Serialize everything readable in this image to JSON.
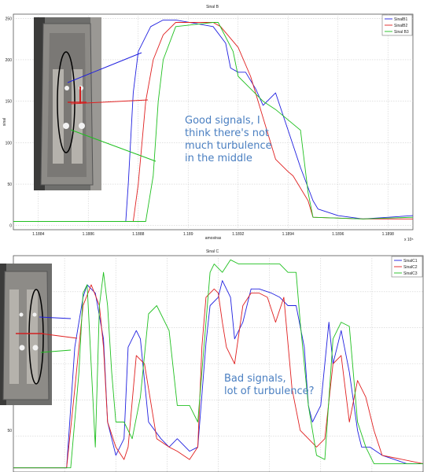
{
  "colors": {
    "series1": "#2020e0",
    "series2": "#e02020",
    "series3": "#20c020",
    "note": "#4a7fc1"
  },
  "chart_data": [
    {
      "type": "line",
      "title": "Sinal B",
      "xlabel": "amostras",
      "ylabel": "sinal",
      "x_exponent": "x 10⁵",
      "xlim": [
        1.1883,
        1.1899
      ],
      "ylim": [
        -5,
        255
      ],
      "x_ticks": [
        1.1884,
        1.1886,
        1.1888,
        1.189,
        1.1892,
        1.1894,
        1.1896,
        1.1898
      ],
      "x_tick_labels": [
        "1.1884",
        "1.1886",
        "1.1888",
        "1.189",
        "1.1892",
        "1.1894",
        "1.1896",
        "1.1898"
      ],
      "y_ticks": [
        0,
        50,
        100,
        150,
        200,
        250
      ],
      "y_tick_labels": [
        "0",
        "50",
        "100",
        "150",
        "200",
        "250"
      ],
      "grid": true,
      "legend_position": "top-right",
      "annotation": [
        "Good signals, I",
        "think there's not",
        "much turbulence",
        "in the middle"
      ],
      "series": [
        {
          "name": "SinalB1",
          "x": [
            1.1883,
            1.18875,
            1.18876,
            1.18878,
            1.1888,
            1.18885,
            1.1889,
            1.18895,
            1.1891,
            1.18915,
            1.18917,
            1.1892,
            1.18923,
            1.18927,
            1.1893,
            1.18935,
            1.1894,
            1.18945,
            1.1895,
            1.18952,
            1.1896,
            1.1897,
            1.1899
          ],
          "y": [
            5,
            5,
            50,
            160,
            210,
            240,
            248,
            248,
            240,
            220,
            190,
            185,
            185,
            165,
            145,
            160,
            115,
            70,
            30,
            20,
            12,
            8,
            12
          ]
        },
        {
          "name": "SinalB2",
          "x": [
            1.1883,
            1.18878,
            1.1888,
            1.18883,
            1.18886,
            1.1889,
            1.18895,
            1.1891,
            1.18913,
            1.1892,
            1.18925,
            1.1893,
            1.18935,
            1.1894,
            1.18942,
            1.18948,
            1.1895,
            1.1897,
            1.1899
          ],
          "y": [
            5,
            5,
            50,
            150,
            200,
            230,
            245,
            245,
            240,
            215,
            180,
            130,
            80,
            65,
            60,
            30,
            10,
            8,
            8
          ]
        },
        {
          "name": "Sinal B3",
          "x": [
            1.1883,
            1.18883,
            1.18886,
            1.18888,
            1.1889,
            1.18895,
            1.1891,
            1.18912,
            1.18918,
            1.1892,
            1.18925,
            1.1893,
            1.18935,
            1.18945,
            1.18948,
            1.1895,
            1.1897,
            1.1899
          ],
          "y": [
            5,
            5,
            60,
            150,
            200,
            240,
            245,
            245,
            210,
            180,
            165,
            150,
            140,
            115,
            40,
            10,
            8,
            10
          ]
        }
      ]
    },
    {
      "type": "line",
      "title": "Sinal C",
      "xlim": [
        0,
        100
      ],
      "ylim": [
        0,
        260
      ],
      "y_ticks": [
        50
      ],
      "y_tick_labels": [
        "50"
      ],
      "grid": true,
      "legend_position": "top-right",
      "annotation": [
        "Bad signals,",
        "lot of turbulence?"
      ],
      "series": [
        {
          "name": "SinalC1",
          "x": [
            0,
            13,
            15,
            17,
            18,
            19,
            20,
            22,
            23,
            25,
            27,
            28,
            30,
            31,
            33,
            36,
            38,
            40,
            43,
            45,
            47,
            48,
            50,
            51,
            53,
            54,
            56,
            58,
            60,
            63,
            65,
            67,
            69,
            71,
            72,
            73,
            75,
            77,
            78,
            80,
            82,
            84,
            85,
            87,
            90,
            93,
            96,
            100
          ],
          "y": [
            5,
            5,
            150,
            210,
            225,
            220,
            215,
            160,
            60,
            20,
            40,
            150,
            170,
            160,
            60,
            40,
            30,
            40,
            25,
            30,
            155,
            200,
            210,
            230,
            210,
            160,
            180,
            220,
            220,
            215,
            210,
            200,
            200,
            150,
            80,
            60,
            80,
            180,
            130,
            170,
            120,
            50,
            30,
            30,
            20,
            15,
            10,
            10
          ]
        },
        {
          "name": "SinalC2",
          "x": [
            0,
            13,
            15,
            17,
            19,
            21,
            22,
            23,
            25,
            27,
            28,
            30,
            32,
            35,
            38,
            40,
            43,
            45,
            46,
            47,
            49,
            50,
            51,
            52,
            54,
            56,
            58,
            60,
            62,
            64,
            66,
            68,
            70,
            72,
            74,
            76,
            78,
            80,
            82,
            84,
            86,
            88,
            90,
            100
          ],
          "y": [
            5,
            5,
            100,
            200,
            225,
            200,
            150,
            60,
            30,
            15,
            30,
            140,
            130,
            40,
            30,
            25,
            15,
            30,
            150,
            210,
            220,
            215,
            180,
            150,
            130,
            200,
            215,
            215,
            210,
            180,
            210,
            100,
            50,
            40,
            30,
            40,
            130,
            140,
            60,
            110,
            90,
            50,
            20,
            10
          ]
        },
        {
          "name": "SinalC3",
          "x": [
            0,
            14,
            16,
            17,
            18,
            20,
            21,
            22,
            23,
            24,
            25,
            27,
            29,
            31,
            33,
            35,
            38,
            40,
            43,
            45,
            47,
            48,
            49,
            51,
            53,
            55,
            57,
            60,
            62,
            65,
            67,
            69,
            70,
            72,
            74,
            76,
            78,
            80,
            82,
            84,
            86,
            88,
            100
          ],
          "y": [
            5,
            5,
            120,
            215,
            225,
            30,
            200,
            240,
            200,
            120,
            60,
            60,
            40,
            90,
            190,
            200,
            170,
            80,
            80,
            60,
            180,
            240,
            250,
            240,
            255,
            250,
            250,
            250,
            250,
            250,
            240,
            240,
            180,
            80,
            20,
            15,
            160,
            180,
            175,
            60,
            30,
            10,
            10
          ]
        }
      ]
    }
  ]
}
